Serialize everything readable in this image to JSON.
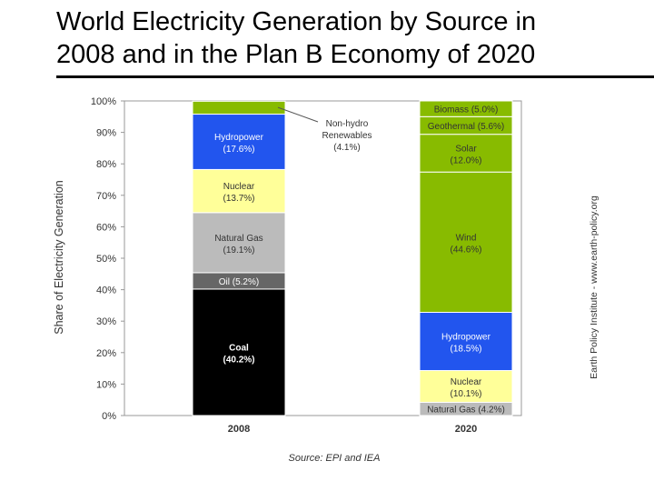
{
  "slide": {
    "title_line1": "World Electricity Generation by Source in",
    "title_line2": "2008 and in the Plan B Economy of 2020"
  },
  "chart_data": {
    "type": "bar",
    "stacked": true,
    "categories": [
      "2008",
      "2020"
    ],
    "ylabel": "Share of Electricity Generation",
    "ylim": [
      0,
      100
    ],
    "yticks": [
      "0%",
      "10%",
      "20%",
      "30%",
      "40%",
      "50%",
      "60%",
      "70%",
      "80%",
      "90%",
      "100%"
    ],
    "source": "Source: EPI and IEA",
    "side_credit": "Earth Policy Institute - www.earth-policy.org",
    "callout": {
      "line1": "Non-hydro",
      "line2": "Renewables",
      "line3": "(4.1%)"
    },
    "colors": {
      "coal": "#000000",
      "oil": "#666666",
      "natural_gas": "#bbbbbb",
      "nuclear": "#ffff99",
      "hydro": "#2255ee",
      "renewable": "#88bb00"
    },
    "bars": [
      {
        "category": "2008",
        "segments": [
          {
            "name": "Coal",
            "value": 40.2,
            "label": "Coal",
            "sub": "(40.2%)",
            "color": "#000000",
            "text_color": "#ffffff",
            "bold": true
          },
          {
            "name": "Oil",
            "value": 5.2,
            "label": "Oil (5.2%)",
            "sub": "",
            "color": "#666666",
            "text_color": "#ffffff",
            "bold": false
          },
          {
            "name": "Natural Gas",
            "value": 19.1,
            "label": "Natural Gas",
            "sub": "(19.1%)",
            "color": "#bbbbbb",
            "text_color": "#333333",
            "bold": false
          },
          {
            "name": "Nuclear",
            "value": 13.7,
            "label": "Nuclear",
            "sub": "(13.7%)",
            "color": "#ffff99",
            "text_color": "#333333",
            "bold": false
          },
          {
            "name": "Hydropower",
            "value": 17.6,
            "label": "Hydropower",
            "sub": "(17.6%)",
            "color": "#2255ee",
            "text_color": "#ffffff",
            "bold": false
          },
          {
            "name": "Non-hydro Renewables",
            "value": 4.1,
            "label": "",
            "sub": "",
            "color": "#88bb00",
            "text_color": "#333333",
            "bold": false
          }
        ]
      },
      {
        "category": "2020",
        "segments": [
          {
            "name": "Natural Gas",
            "value": 4.2,
            "label": "Natural Gas (4.2%)",
            "sub": "",
            "color": "#bbbbbb",
            "text_color": "#333333",
            "bold": false
          },
          {
            "name": "Nuclear",
            "value": 10.1,
            "label": "Nuclear",
            "sub": "(10.1%)",
            "color": "#ffff99",
            "text_color": "#333333",
            "bold": false
          },
          {
            "name": "Hydropower",
            "value": 18.5,
            "label": "Hydropower",
            "sub": "(18.5%)",
            "color": "#2255ee",
            "text_color": "#ffffff",
            "bold": false
          },
          {
            "name": "Wind",
            "value": 44.6,
            "label": "Wind",
            "sub": "(44.6%)",
            "color": "#88bb00",
            "text_color": "#333333",
            "bold": false
          },
          {
            "name": "Solar",
            "value": 12.0,
            "label": "Solar",
            "sub": "(12.0%)",
            "color": "#88bb00",
            "text_color": "#333333",
            "bold": false
          },
          {
            "name": "Geothermal",
            "value": 5.6,
            "label": "Geothermal (5.6%)",
            "sub": "",
            "color": "#88bb00",
            "text_color": "#333333",
            "bold": false
          },
          {
            "name": "Biomass",
            "value": 5.0,
            "label": "Biomass (5.0%)",
            "sub": "",
            "color": "#88bb00",
            "text_color": "#333333",
            "bold": false
          }
        ]
      }
    ]
  }
}
